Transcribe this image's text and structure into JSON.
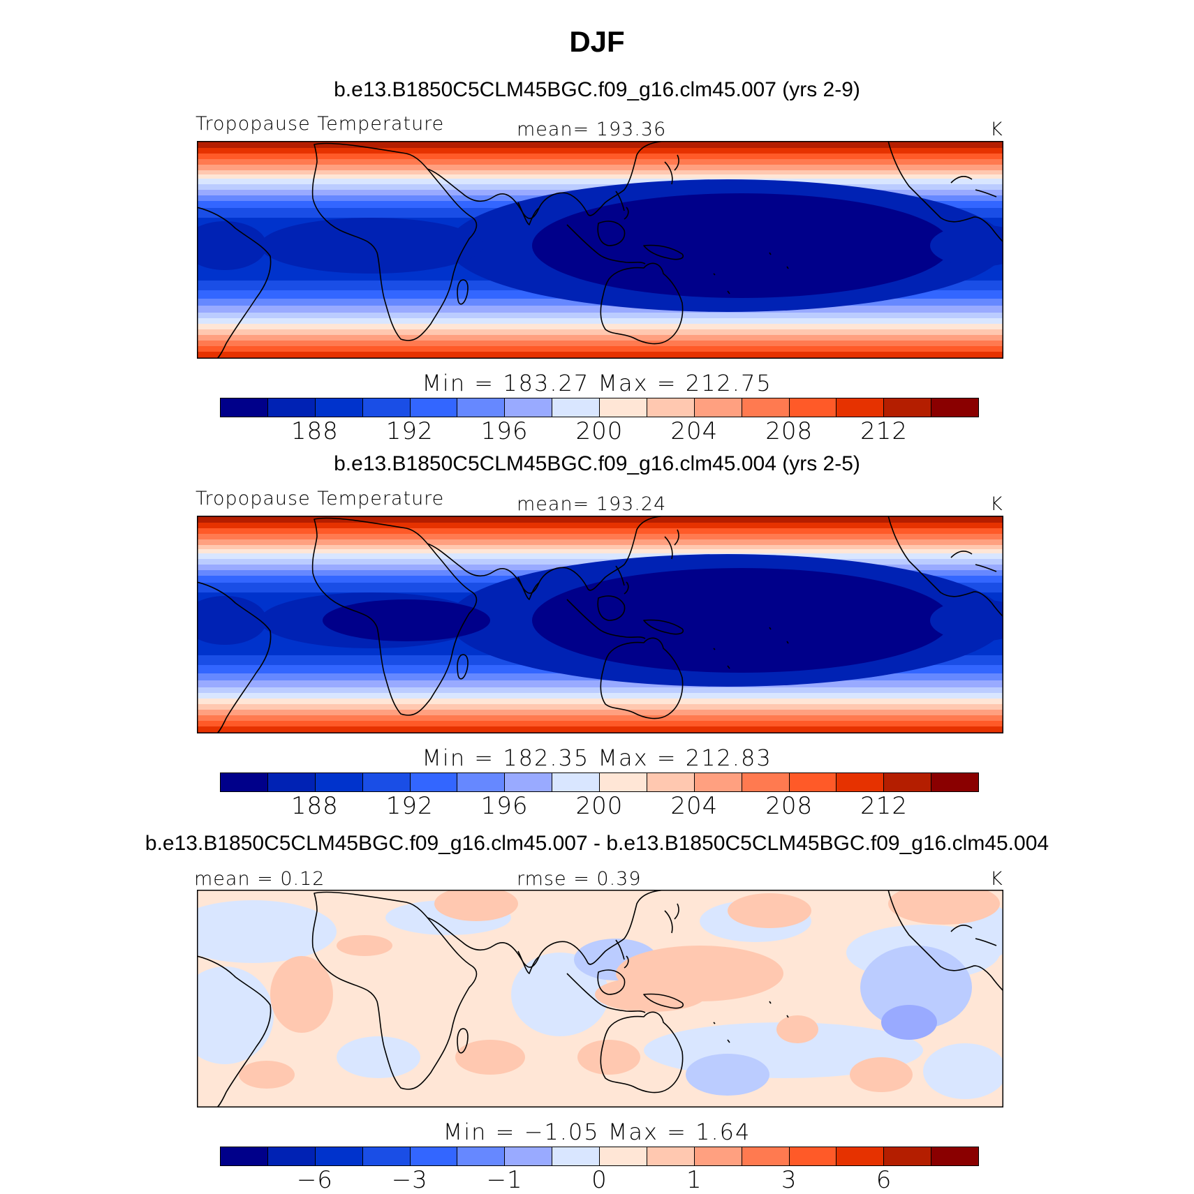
{
  "figure": {
    "title": "DJF"
  },
  "panels": [
    {
      "case_title": "b.e13.B1850C5CLM45BGC.f09_g16.clm45.007 (yrs 2-9)",
      "variable": "Tropopause Temperature",
      "stat_label": "mean= 193.36",
      "units": "K",
      "min_max": "Min = 183.27 Max = 212.75",
      "colorbar_ticks": [
        "188",
        "192",
        "196",
        "200",
        "204",
        "208",
        "212"
      ]
    },
    {
      "case_title": "b.e13.B1850C5CLM45BGC.f09_g16.clm45.004 (yrs 2-5)",
      "variable": "Tropopause Temperature",
      "stat_label": "mean= 193.24",
      "units": "K",
      "min_max": "Min = 182.35 Max = 212.83",
      "colorbar_ticks": [
        "188",
        "192",
        "196",
        "200",
        "204",
        "208",
        "212"
      ]
    },
    {
      "case_title": "b.e13.B1850C5CLM45BGC.f09_g16.clm45.007 - b.e13.B1850C5CLM45BGC.f09_g16.clm45.004",
      "mean_label": "mean =    0.12",
      "rmse_label": "rmse =    0.39",
      "units": "K",
      "min_max": "Min =   −1.05 Max =    1.64",
      "colorbar_ticks": [
        "−6",
        "−3",
        "−1",
        "0",
        "1",
        "3",
        "6"
      ]
    }
  ],
  "colors": {
    "palette": [
      "#00008a",
      "#0022b4",
      "#0033cc",
      "#1a4ee6",
      "#3366ff",
      "#6688ff",
      "#99aaff",
      "#bbccff",
      "#d9e6ff",
      "#ffe6d6",
      "#ffc8b0",
      "#ffa080",
      "#ff7a50",
      "#ff5a28",
      "#e63200",
      "#b41e00",
      "#8a0000"
    ],
    "colorbar_swatches": [
      "#00008a",
      "#0022b4",
      "#0033cc",
      "#1a4ee6",
      "#3366ff",
      "#6688ff",
      "#99aaff",
      "#d9e6ff",
      "#ffe6d6",
      "#ffc8b0",
      "#ffa080",
      "#ff7a50",
      "#ff5a28",
      "#e63200",
      "#b41e00",
      "#8a0000"
    ],
    "coast": "#000000"
  }
}
